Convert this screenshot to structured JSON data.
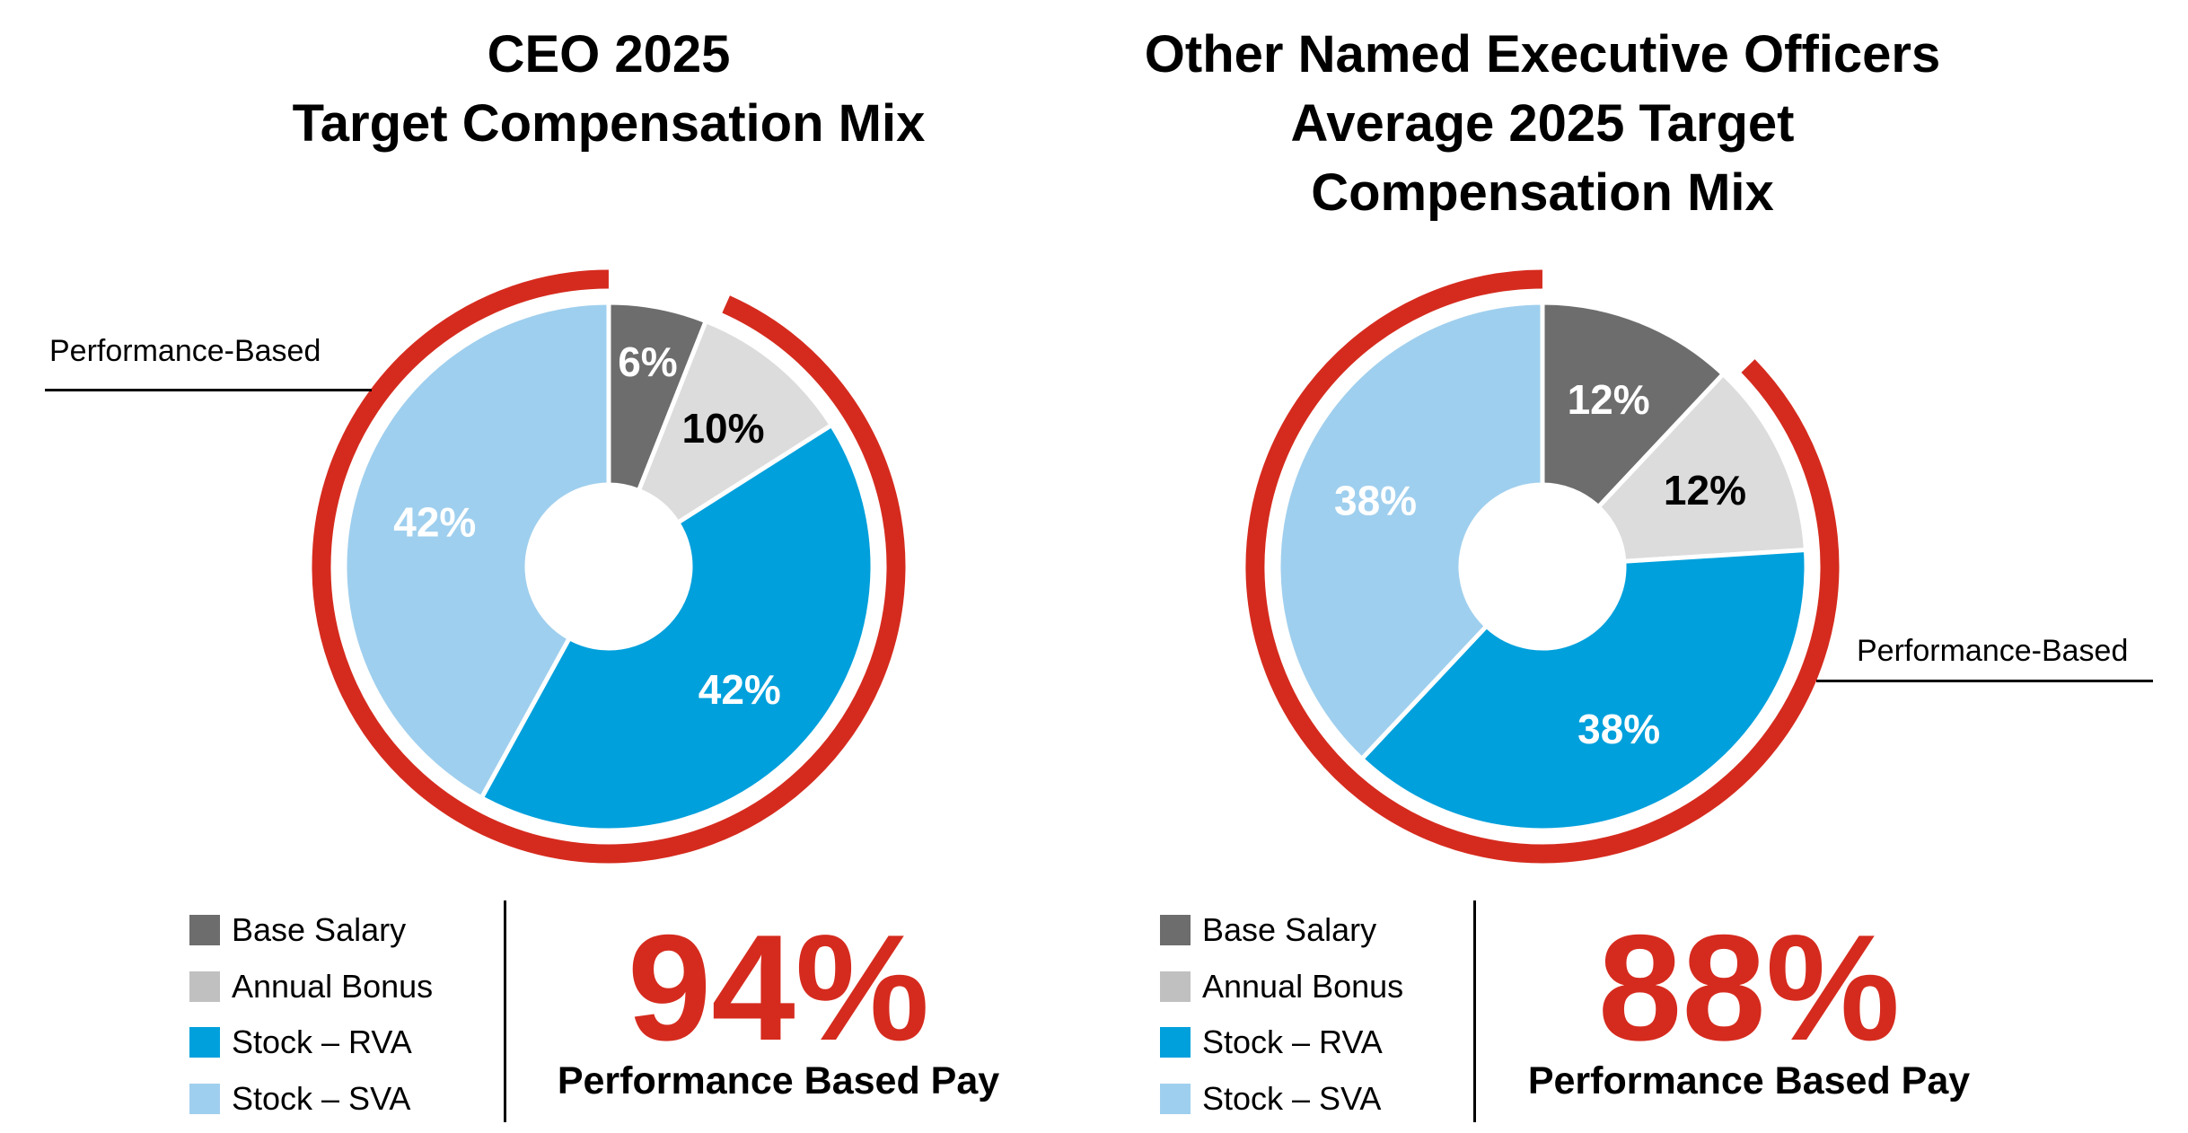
{
  "chart_data": [
    {
      "type": "pie",
      "title": "CEO 2025\nTarget Compensation Mix",
      "categories": [
        "Base Salary",
        "Annual Bonus",
        "Stock – RVA",
        "Stock – SVA"
      ],
      "values": [
        6,
        10,
        42,
        42
      ],
      "labels": [
        "6%",
        "10%",
        "42%",
        "42%"
      ],
      "colors": [
        "#6d6d6d",
        "#dcdcdc",
        "#00a0dc",
        "#9fcfee"
      ],
      "legend_colors": [
        "#6d6d6d",
        "#c0c0c0",
        "#00a0dc",
        "#9fcfee"
      ],
      "label_colors": [
        "#ffffff",
        "#000000",
        "#ffffff",
        "#ffffff"
      ],
      "highlight_ring": {
        "label": "Performance-Based",
        "color": "#d52b1e",
        "covers": [
          "Annual Bonus",
          "Stock – RVA",
          "Stock – SVA"
        ]
      },
      "legend_placement": "bottom-left",
      "summary": {
        "value": "94%",
        "label": "Performance Based Pay"
      }
    },
    {
      "type": "pie",
      "title": "Other Named Executive Officers\nAverage 2025 Target\nCompensation Mix",
      "categories": [
        "Base Salary",
        "Annual Bonus",
        "Stock – RVA",
        "Stock – SVA"
      ],
      "values": [
        12,
        12,
        38,
        38
      ],
      "labels": [
        "12%",
        "12%",
        "38%",
        "38%"
      ],
      "colors": [
        "#6d6d6d",
        "#dcdcdc",
        "#00a0dc",
        "#9fcfee"
      ],
      "legend_colors": [
        "#6d6d6d",
        "#c0c0c0",
        "#00a0dc",
        "#9fcfee"
      ],
      "label_colors": [
        "#ffffff",
        "#000000",
        "#ffffff",
        "#ffffff"
      ],
      "highlight_ring": {
        "label": "Performance-Based",
        "color": "#d52b1e",
        "covers": [
          "Annual Bonus",
          "Stock – RVA",
          "Stock – SVA"
        ]
      },
      "legend_placement": "bottom-left",
      "summary": {
        "value": "88%",
        "label": "Performance Based Pay"
      }
    }
  ]
}
